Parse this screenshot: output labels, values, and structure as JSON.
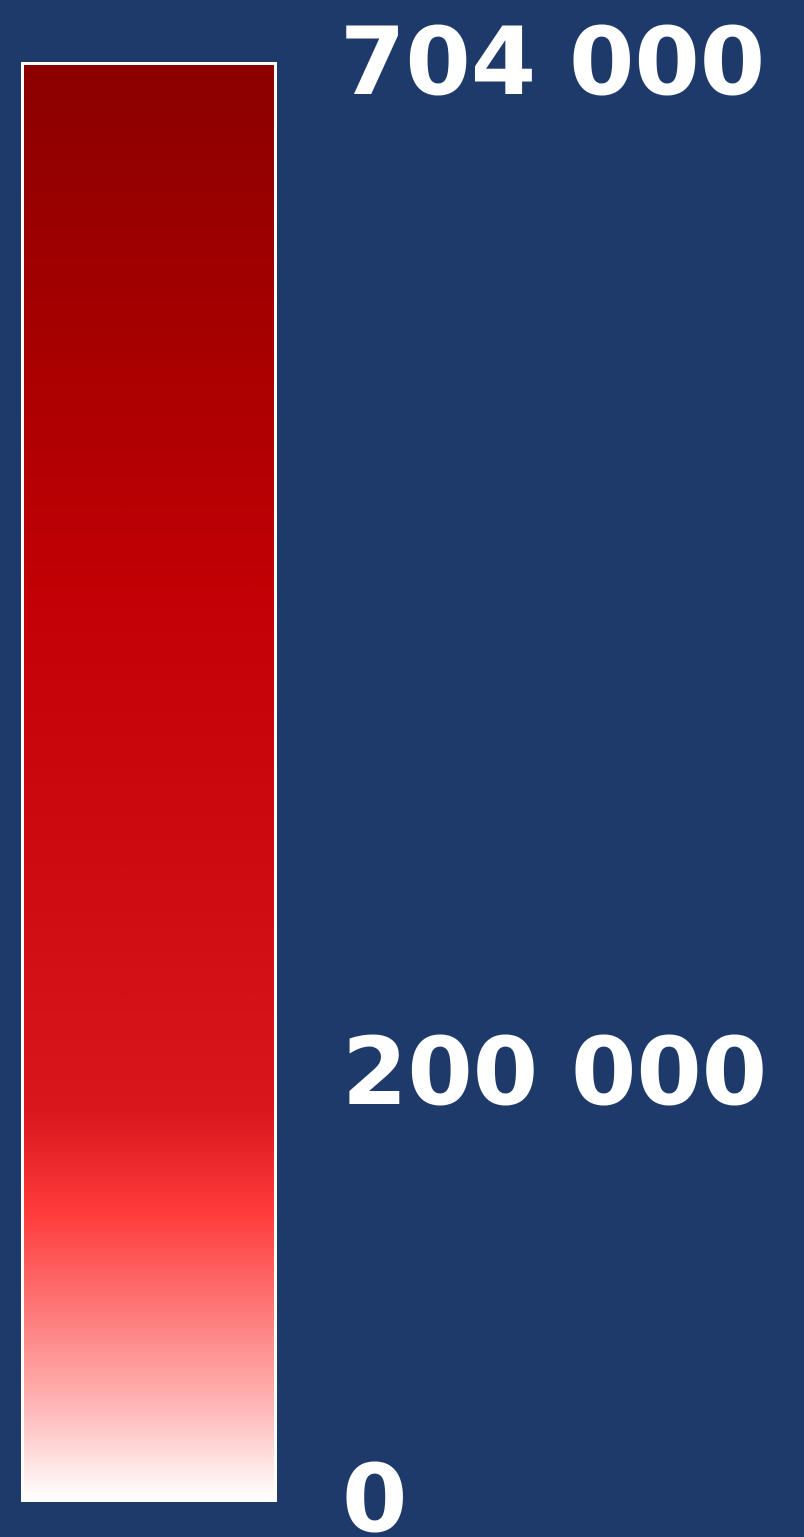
{
  "legend": {
    "max_label": "704 000",
    "mid_label": "200 000",
    "min_label": "0",
    "scale_min": 0,
    "scale_mid": 200000,
    "scale_max": 704000,
    "gradient_colors": [
      "#8b0000",
      "#c20005",
      "#d8161c",
      "#ff3b3b",
      "#ffb0b0",
      "#ffffff"
    ],
    "background_color": "#1e3a6a",
    "label_color": "#ffffff"
  }
}
